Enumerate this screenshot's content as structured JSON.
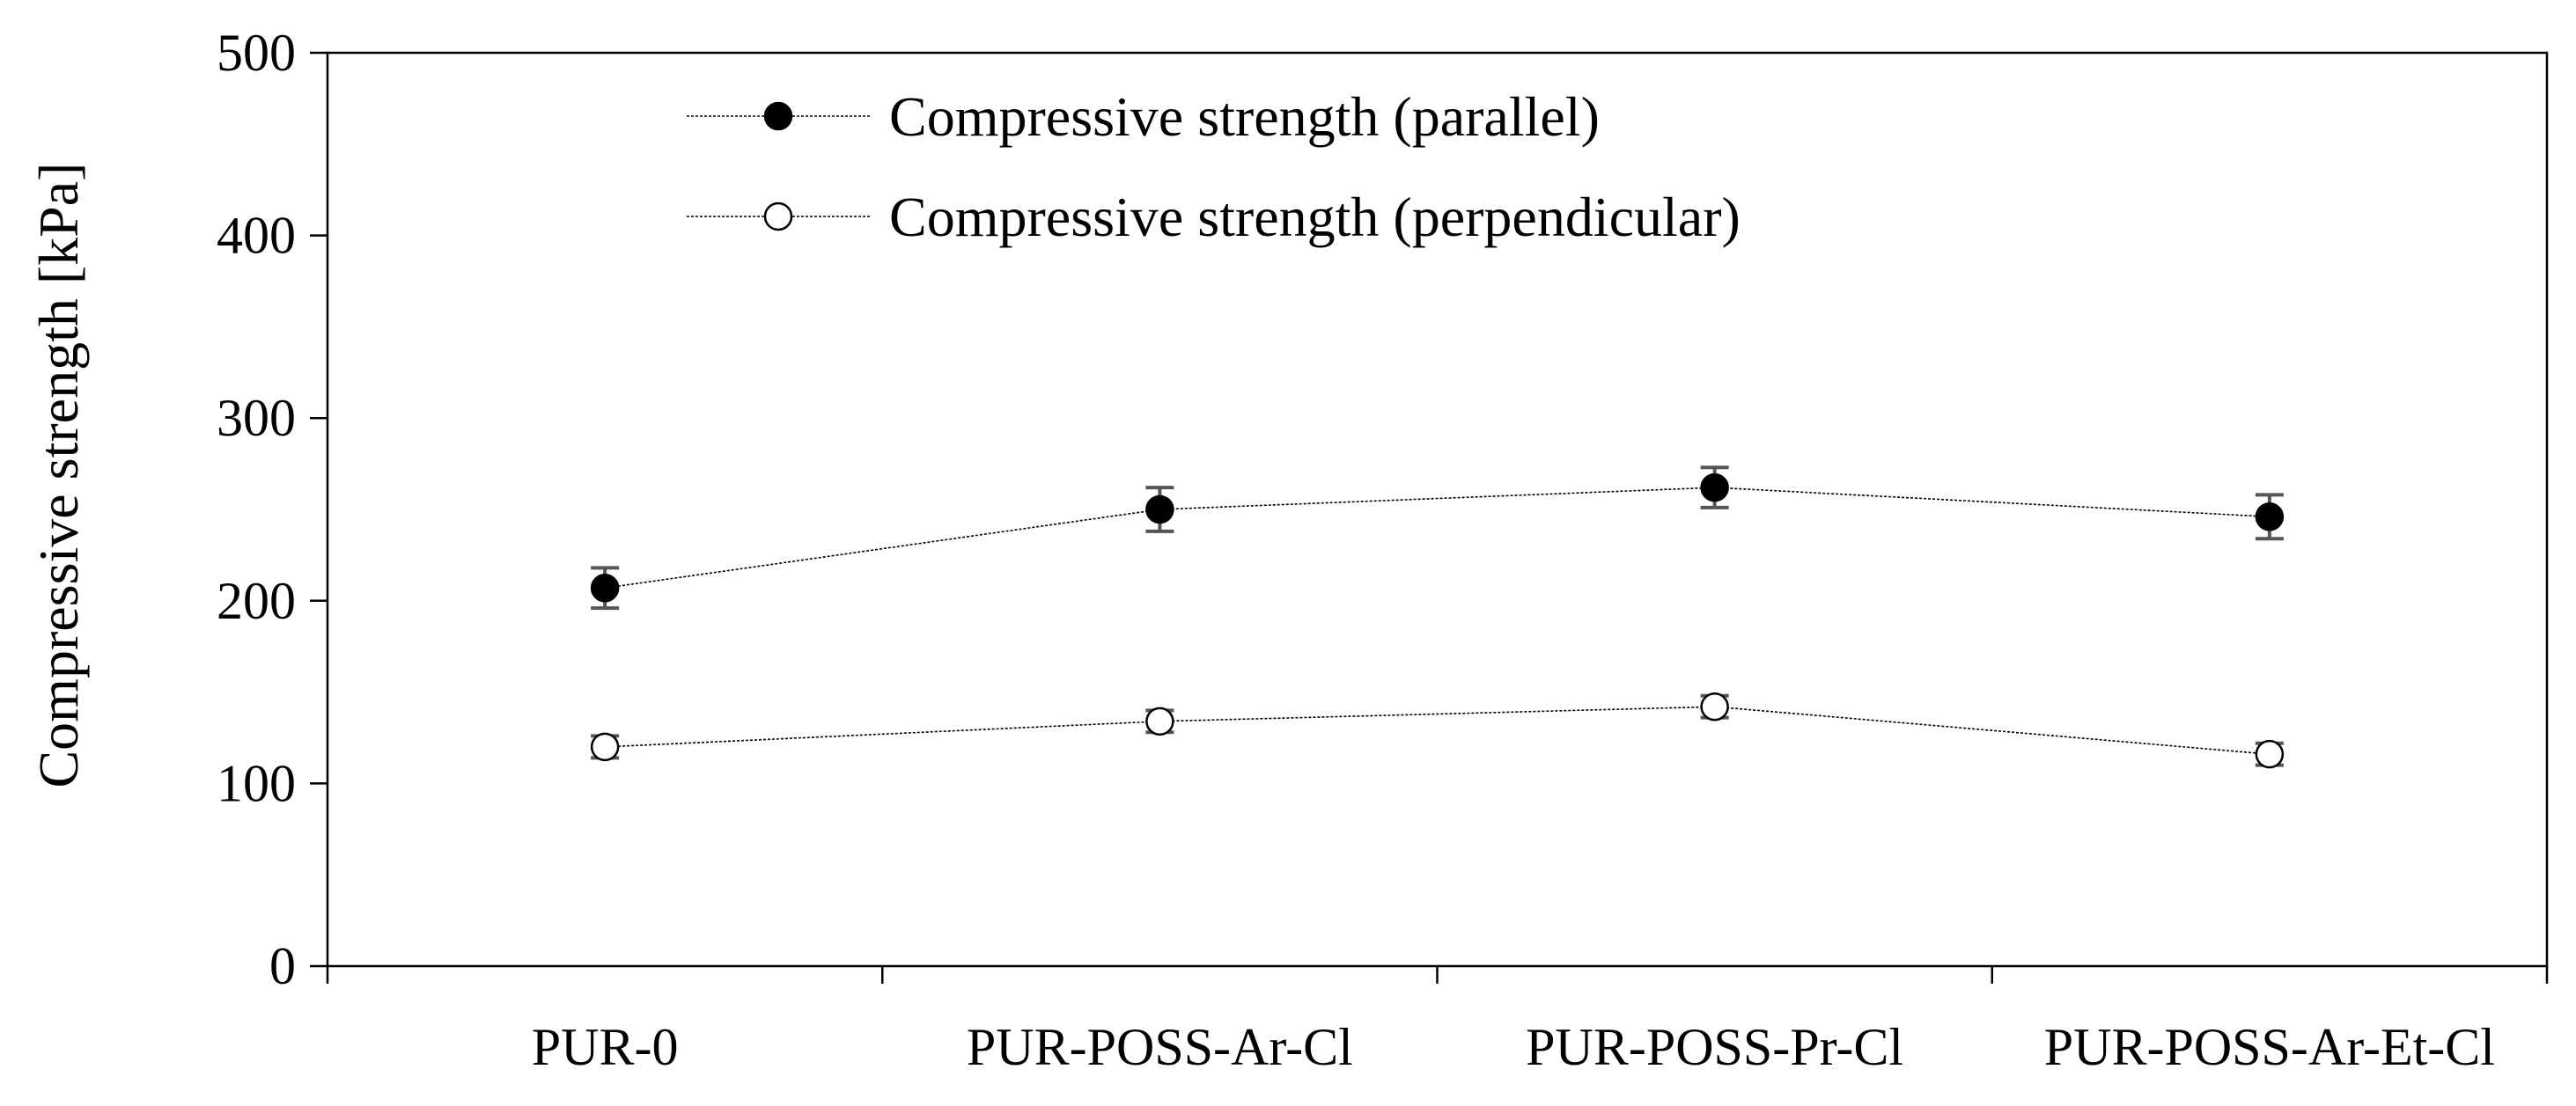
{
  "chart_data": {
    "type": "line",
    "title": "",
    "xlabel": "",
    "ylabel": "Compressive strength [kPa]",
    "categories": [
      "PUR-0",
      "PUR-POSS-Ar-Cl",
      "PUR-POSS-Pr-Cl",
      "PUR-POSS-Ar-Et-Cl"
    ],
    "ylim": [
      0,
      500
    ],
    "yticks": [
      "0",
      "100",
      "200",
      "300",
      "400",
      "500"
    ],
    "grid": false,
    "legend_position": "top-left",
    "series": [
      {
        "name": "Compressive strength (parallel)",
        "marker": "filled-circle",
        "color": "#000000",
        "values": [
          207,
          250,
          262,
          246
        ],
        "errors": [
          11,
          12,
          11,
          12
        ]
      },
      {
        "name": "Compressive strength (perpendicular)",
        "marker": "open-circle",
        "color": "#000000",
        "values": [
          120,
          134,
          142,
          116
        ],
        "errors": [
          6,
          6,
          6,
          6
        ]
      }
    ]
  }
}
